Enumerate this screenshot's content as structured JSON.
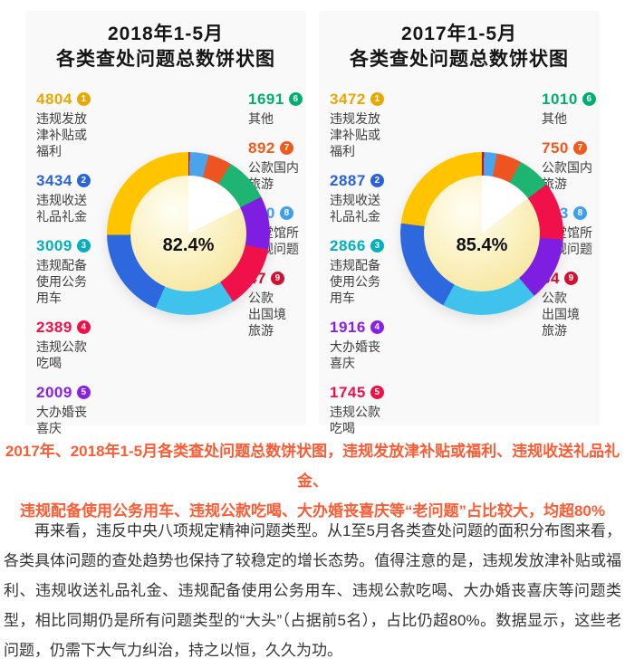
{
  "colors": {
    "caption_red": "#fb5c34",
    "panel_bg": "#f9f9f9",
    "body_text": "#333333"
  },
  "panels": [
    {
      "title_line1": "2018年1-5月",
      "title_line2": "各类查处问题总数饼状图",
      "center_percent": "82.4%",
      "center_percent_value": 82.4,
      "legend_left": [
        {
          "value": "4804",
          "badge": "1",
          "color": "#e8a800",
          "lines": [
            "违规发放",
            "津补贴或",
            "福利"
          ]
        },
        {
          "value": "3434",
          "badge": "2",
          "color": "#2a63d9",
          "lines": [
            "违规收送",
            "礼品礼金"
          ]
        },
        {
          "value": "3009",
          "badge": "3",
          "color": "#00afc0",
          "lines": [
            "违规配备",
            "使用公务",
            "用车"
          ]
        },
        {
          "value": "2389",
          "badge": "4",
          "color": "#f01047",
          "lines": [
            "违规公款",
            "吃喝"
          ]
        },
        {
          "value": "2009",
          "badge": "5",
          "color": "#8920e6",
          "lines": [
            "大办婚丧",
            "喜庆"
          ]
        }
      ],
      "legend_right": [
        {
          "value": "1691",
          "badge": "6",
          "color": "#00af6e",
          "lines": [
            "其他"
          ]
        },
        {
          "value": "892",
          "badge": "7",
          "color": "#f2591d",
          "lines": [
            "公款国内",
            "旅游"
          ]
        },
        {
          "value": "710",
          "badge": "8",
          "color": "#3e9ff0",
          "lines": [
            "楼堂馆所",
            "违规问题"
          ]
        },
        {
          "value": "47",
          "badge": "9",
          "color": "#d41031",
          "lines": [
            "公款",
            "出国境",
            "旅游"
          ]
        }
      ]
    },
    {
      "title_line1": "2017年1-5月",
      "title_line2": "各类查处问题总数饼状图",
      "center_percent": "85.4%",
      "center_percent_value": 85.4,
      "legend_left": [
        {
          "value": "3472",
          "badge": "1",
          "color": "#e8a800",
          "lines": [
            "违规发放",
            "津补贴或",
            "福利"
          ]
        },
        {
          "value": "2887",
          "badge": "2",
          "color": "#2a63d9",
          "lines": [
            "违规收送",
            "礼品礼金"
          ]
        },
        {
          "value": "2866",
          "badge": "3",
          "color": "#00afc0",
          "lines": [
            "违规配备",
            "使用公务",
            "用车"
          ]
        },
        {
          "value": "1916",
          "badge": "4",
          "color": "#8920e6",
          "lines": [
            "大办婚丧",
            "喜庆"
          ]
        },
        {
          "value": "1745",
          "badge": "5",
          "color": "#f01047",
          "lines": [
            "违规公款",
            "吃喝"
          ]
        }
      ],
      "legend_right": [
        {
          "value": "1010",
          "badge": "6",
          "color": "#00af6e",
          "lines": [
            "其他"
          ]
        },
        {
          "value": "750",
          "badge": "7",
          "color": "#f2591d",
          "lines": [
            "公款国内",
            "旅游"
          ]
        },
        {
          "value": "383",
          "badge": "8",
          "color": "#3e9ff0",
          "lines": [
            "楼堂馆所",
            "违规问题"
          ]
        },
        {
          "value": "64",
          "badge": "9",
          "color": "#d41031",
          "lines": [
            "公款",
            "出国境",
            "旅游"
          ]
        }
      ]
    }
  ],
  "chart_data": [
    {
      "type": "pie",
      "title": "2018年1-5月各类查处问题总数饼状图",
      "labels": [
        "违规发放津补贴或福利",
        "违规收送礼品礼金",
        "违规配备使用公务用车",
        "违规公款吃喝",
        "大办婚丧喜庆",
        "其他",
        "公款国内旅游",
        "楼堂馆所违规问题",
        "公款出国境旅游"
      ],
      "values": [
        4804,
        3434,
        3009,
        2389,
        2009,
        1691,
        892,
        710,
        47
      ],
      "colors": [
        "#ffc400",
        "#2e68de",
        "#3fc3ec",
        "#f0114a",
        "#7e1ee0",
        "#1eb573",
        "#ee5322",
        "#4aa4ec",
        "#c8102e"
      ],
      "center_label": "82.4%",
      "center_label_meaning": "top-5 categories share of total",
      "slice_order": "ascending by value, clockwise from 12 o'clock",
      "legend_position": "left and right of donut"
    },
    {
      "type": "pie",
      "title": "2017年1-5月各类查处问题总数饼状图",
      "labels": [
        "违规发放津补贴或福利",
        "违规收送礼品礼金",
        "违规配备使用公务用车",
        "大办婚丧喜庆",
        "违规公款吃喝",
        "其他",
        "公款国内旅游",
        "楼堂馆所违规问题",
        "公款出国境旅游"
      ],
      "values": [
        3472,
        2887,
        2866,
        1916,
        1745,
        1010,
        750,
        383,
        64
      ],
      "colors": [
        "#ffc400",
        "#2e68de",
        "#3fc3ec",
        "#7e1ee0",
        "#f0114a",
        "#1eb573",
        "#ee5322",
        "#4aa4ec",
        "#c8102e"
      ],
      "center_label": "85.4%",
      "center_label_meaning": "top-5 categories share of total",
      "slice_order": "ascending by value, clockwise from 12 o'clock",
      "legend_position": "left and right of donut"
    }
  ],
  "caption": {
    "line1": "2017年、2018年1-5月各类查处问题总数饼状图，违规发放津补贴或福利、违规收送礼品礼金、",
    "line2": "违规配备使用公务用车、违规公款吃喝、大办婚丧喜庆等“老问题”占比较大，均超80%"
  },
  "paragraph": "再来看，违反中央八项规定精神问题类型。从1至5月各类查处问题的面积分布图来看，各类具体问题的查处趋势也保持了较稳定的增长态势。值得注意的是，违规发放津补贴或福利、违规收送礼品礼金、违规配备使用公务用车、违规公款吃喝、大办婚丧喜庆等问题类型，相比同期仍是所有问题类型的“大头”（占据前5名），占比仍超80%。数据显示，这些老问题，仍需下大气力纠治，持之以恒，久久为功。"
}
